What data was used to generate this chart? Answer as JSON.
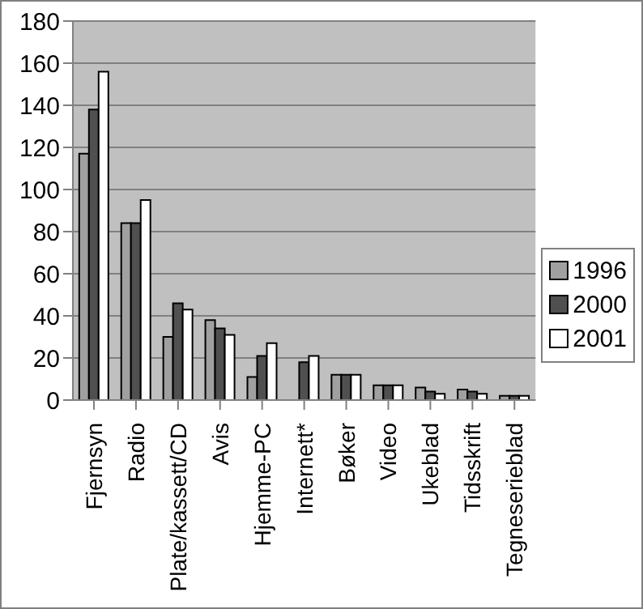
{
  "chart_data": {
    "type": "bar",
    "categories": [
      "Fjernsyn",
      "Radio",
      "Plate/kassett/CD",
      "Avis",
      "Hjemme-PC",
      "Internett*",
      "Bøker",
      "Video",
      "Ukeblad",
      "Tidsskrift",
      "Tegneserieblad"
    ],
    "series": [
      {
        "name": "1996",
        "color": "#a0a0a0",
        "values": [
          117,
          84,
          30,
          38,
          11,
          null,
          12,
          7,
          6,
          5,
          2
        ]
      },
      {
        "name": "2000",
        "color": "#505050",
        "values": [
          138,
          84,
          46,
          34,
          21,
          18,
          12,
          7,
          4,
          4,
          2
        ]
      },
      {
        "name": "2001",
        "color": "#ffffff",
        "values": [
          156,
          95,
          43,
          31,
          27,
          21,
          12,
          7,
          3,
          3,
          2
        ]
      }
    ],
    "ylim": [
      0,
      180
    ],
    "yticks": [
      0,
      20,
      40,
      60,
      80,
      100,
      120,
      140,
      160,
      180
    ],
    "grid": "y",
    "legend": "right"
  }
}
